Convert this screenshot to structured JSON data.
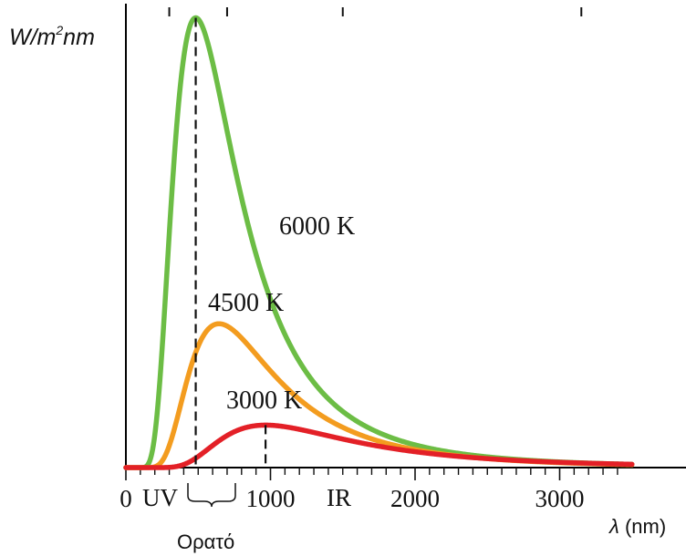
{
  "chart_data": {
    "type": "line",
    "ylabel": "W/m²nm",
    "ylabel_parts": {
      "main": "W/m",
      "sup": "2",
      "tail": "nm"
    },
    "xlabel": "λ (nm)",
    "xlabel_parts": {
      "symbol": "λ",
      "unit": "(nm)"
    },
    "xlim": [
      0,
      3500
    ],
    "ylim": [
      0,
      1
    ],
    "grid": false,
    "x_ticks": [
      {
        "value": 0,
        "label": "0"
      },
      {
        "value": 1000,
        "label": "1000"
      },
      {
        "value": 2000,
        "label": "2000"
      },
      {
        "value": 3000,
        "label": "3000"
      }
    ],
    "minor_tick_step": 100,
    "regions": {
      "uv": "UV",
      "visible": "Ορατό",
      "ir": "IR",
      "visible_range": [
        400,
        700
      ]
    },
    "series": [
      {
        "name": "6000 K",
        "temperature": 6000,
        "color": "#6cbd45",
        "peak_wavelength": 483,
        "peak_value": 0.985
      },
      {
        "name": "4500 K",
        "temperature": 4500,
        "color": "#f39c1f",
        "peak_wavelength": 644,
        "peak_value": 0.315
      },
      {
        "name": "3000 K",
        "temperature": 3000,
        "color": "#e32027",
        "peak_wavelength": 966,
        "peak_value": 0.093
      }
    ],
    "peak_markers": [
      483,
      966
    ]
  }
}
